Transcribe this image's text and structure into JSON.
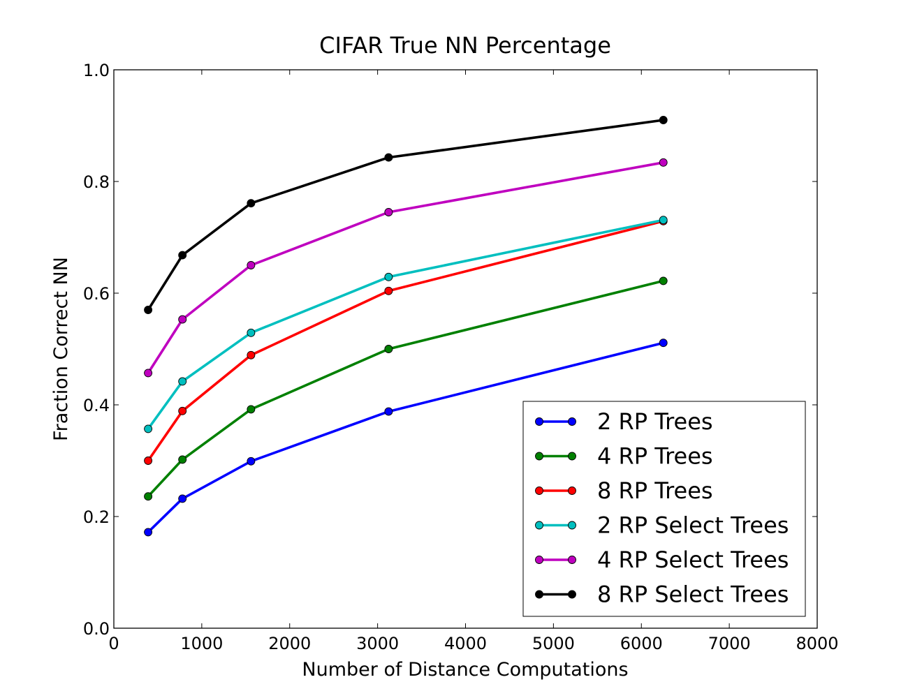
{
  "chart_data": {
    "type": "line",
    "title": "CIFAR True NN Percentage",
    "xlabel": "Number of Distance Computations",
    "ylabel": "Fraction Correct NN",
    "xlim": [
      0,
      8000
    ],
    "ylim": [
      0.0,
      1.0
    ],
    "xticks": [
      0,
      1000,
      2000,
      3000,
      4000,
      5000,
      6000,
      7000,
      8000
    ],
    "xtick_labels": [
      "0",
      "1000",
      "2000",
      "3000",
      "4000",
      "5000",
      "6000",
      "7000",
      "8000"
    ],
    "yticks": [
      0.0,
      0.2,
      0.4,
      0.6,
      0.8,
      1.0
    ],
    "ytick_labels": [
      "0.0",
      "0.2",
      "0.4",
      "0.6",
      "0.8",
      "1.0"
    ],
    "grid": false,
    "legend_position": "lower-right",
    "x": [
      390,
      780,
      1560,
      3125,
      6250
    ],
    "series": [
      {
        "name": "2 RP Trees",
        "color": "#0000ff",
        "values": [
          0.172,
          0.232,
          0.299,
          0.388,
          0.511
        ]
      },
      {
        "name": "4 RP Trees",
        "color": "#008000",
        "values": [
          0.236,
          0.302,
          0.392,
          0.5,
          0.622
        ]
      },
      {
        "name": "8 RP Trees",
        "color": "#ff0000",
        "values": [
          0.3,
          0.389,
          0.489,
          0.604,
          0.729
        ]
      },
      {
        "name": "2 RP Select Trees",
        "color": "#00bfbf",
        "values": [
          0.357,
          0.442,
          0.529,
          0.629,
          0.731
        ]
      },
      {
        "name": "4 RP Select Trees",
        "color": "#bf00bf",
        "values": [
          0.457,
          0.553,
          0.65,
          0.745,
          0.834
        ]
      },
      {
        "name": "8 RP Select Trees",
        "color": "#000000",
        "values": [
          0.57,
          0.668,
          0.761,
          0.843,
          0.91
        ]
      }
    ]
  }
}
